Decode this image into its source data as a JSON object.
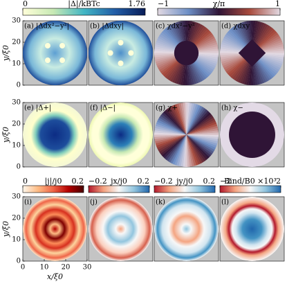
{
  "chart_data": {
    "type": "heatmap-grid",
    "xlabel": "x/ξ0",
    "ylabel": "y/ξ0",
    "xlim": [
      0,
      30
    ],
    "ylim": [
      0,
      30
    ],
    "xticks": [
      0,
      10,
      20,
      30
    ],
    "yticks": [
      0,
      10,
      20,
      30
    ],
    "colorbars": [
      {
        "label": "|Δ|/kBTc",
        "lim": [
          0,
          1.76
        ],
        "ticks": [
          0,
          1.76
        ],
        "colors": [
          "#ffffd9",
          "#c7e9b4",
          "#41b6c4",
          "#225ea8",
          "#081d58"
        ]
      },
      {
        "label": "χ/π",
        "lim": [
          -1,
          1
        ],
        "ticks": [
          {
            "value": -1,
            "label": "−1"
          },
          1
        ],
        "colors": [
          "#e2d9e2",
          "#6d8fc6",
          "#2f1436",
          "#a84a3c",
          "#e2d9e2"
        ]
      },
      {
        "label": "|j|/j0",
        "lim": [
          0,
          0.2
        ],
        "ticks": [
          0,
          0.2
        ],
        "colors": [
          "#fff7ec",
          "#fdbb84",
          "#ef6548",
          "#b30000",
          "#4a0000"
        ]
      },
      {
        "label": "jx/j0",
        "lim": [
          -0.2,
          0.2
        ],
        "ticks": [
          {
            "value": -0.2,
            "label": "−0.2"
          },
          0.2
        ],
        "colors": [
          "#b2182b",
          "#f4a582",
          "#f7f7f7",
          "#92c5de",
          "#2166ac"
        ]
      },
      {
        "label": "jy/j0",
        "lim": [
          -0.2,
          0.2
        ],
        "ticks": [
          {
            "value": -0.2,
            "label": "−0.2"
          },
          0.2
        ],
        "colors": [
          "#b2182b",
          "#f4a582",
          "#f7f7f7",
          "#92c5de",
          "#2166ac"
        ]
      },
      {
        "label": "Bind/B0 ×10³",
        "lim": [
          -2,
          2
        ],
        "ticks": [
          {
            "value": -2,
            "label": "−2"
          },
          2
        ],
        "colors": [
          "#b2182b",
          "#f4a582",
          "#f7f7f7",
          "#92c5de",
          "#2166ac"
        ]
      }
    ],
    "panels": [
      "(a) |Δdx²−y²|",
      "(b) |Δdxy|",
      "(c) χdx²−y²",
      "(d) χdxy",
      "(e) |Δ+|",
      "(f) |Δ−|",
      "(g) χ+",
      "(h) χ−",
      "(i)",
      "(j)",
      "(k)",
      "(l)"
    ]
  }
}
